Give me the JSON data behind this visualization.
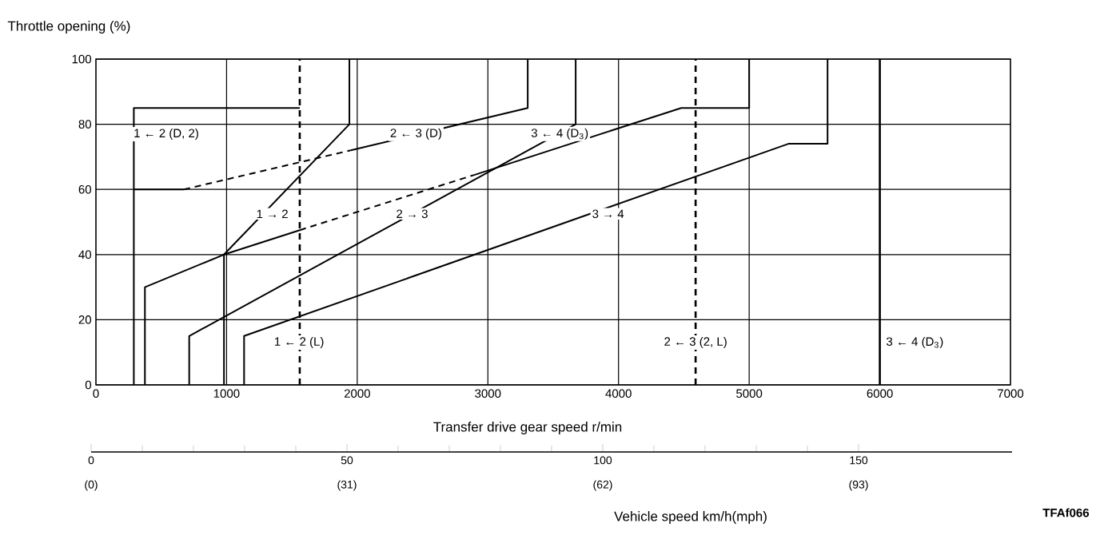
{
  "chart_data": {
    "type": "line",
    "ylabel": "Throttle opening (%)",
    "xlabel": "Transfer drive gear speed r/min",
    "x2label": "Vehicle speed km/h(mph)",
    "xlim": [
      0,
      7000
    ],
    "xticks": [
      0,
      1000,
      2000,
      3000,
      4000,
      5000,
      6000,
      7000
    ],
    "ylim": [
      0,
      100
    ],
    "yticks": [
      0,
      20,
      40,
      60,
      80,
      100
    ],
    "x2lim": [
      0,
      180
    ],
    "x2ticks": [
      0,
      50,
      100,
      150
    ],
    "grid": true,
    "series": [
      {
        "color": "#000000",
        "line_style": "solid",
        "x": [
          290,
          290,
          1560
        ],
        "values": [
          0,
          85,
          85
        ]
      },
      {
        "color": "#000000",
        "line_style": "solid",
        "x": [
          290,
          673
        ],
        "values": [
          60,
          60
        ]
      },
      {
        "color": "#000000",
        "line_style": "dashed",
        "x": [
          673,
          1950
        ],
        "values": [
          60,
          72
        ]
      },
      {
        "color": "#000000",
        "line_style": "solid",
        "x": [
          1950,
          3305,
          3305
        ],
        "values": [
          72,
          85,
          100
        ]
      },
      {
        "color": "#000000",
        "line_style": "solid",
        "x": [
          375,
          375,
          980,
          1940,
          1940
        ],
        "values": [
          0,
          30,
          40,
          80,
          100
        ]
      },
      {
        "color": "#000000",
        "line_style": "solid",
        "x": [
          714,
          714,
          3672,
          3672
        ],
        "values": [
          0,
          15,
          80,
          100
        ]
      },
      {
        "color": "#000000",
        "line_style": "solid",
        "x": [
          980,
          980,
          1560
        ],
        "values": [
          0,
          40,
          47.5
        ]
      },
      {
        "color": "#000000",
        "line_style": "dashed",
        "x": [
          1560,
          2900
        ],
        "values": [
          47.5,
          64.5
        ]
      },
      {
        "color": "#000000",
        "line_style": "solid",
        "x": [
          2900,
          4480,
          5000,
          5000
        ],
        "values": [
          64.5,
          85,
          85,
          100
        ]
      },
      {
        "color": "#000000",
        "line_style": "solid",
        "x": [
          1134,
          1134,
          5300,
          5600,
          5600
        ],
        "values": [
          0,
          15,
          74,
          74,
          100
        ]
      }
    ],
    "ref_lines": [
      {
        "axis": "x",
        "value": 1560,
        "line_style": "dashed",
        "color": "#000000"
      },
      {
        "axis": "x",
        "value": 4590,
        "line_style": "dashed",
        "color": "#000000"
      },
      {
        "axis": "x",
        "value": 6000,
        "line_style": "solid",
        "color": "#000000"
      }
    ],
    "annotations": [
      "1 ← 2 (D, 2)",
      {
        "text": "2 ← 3 (D)",
        "x": 2450,
        "y": 77
      },
      {
        "text": "3 ← 4 (D$_{3}$)",
        "x": 3550,
        "y": 77
      },
      {
        "text": "1 → 2",
        "x": 1350,
        "y": 52.5
      },
      {
        "text": "2 → 3",
        "x": 2420,
        "y": 52.5
      },
      {
        "text": "3 → 4",
        "x": 3920,
        "y": 52.5
      },
      {
        "text": "1 ← 2 (L)",
        "x": 1555,
        "y": 13
      },
      {
        "text": "2 ← 3 (2, L)",
        "x": 4590,
        "y": 13
      },
      "3 ← 4 (D$_{3}$)",
      "TFAf066",
      "(0)",
      "(31)",
      "(62)",
      "(93)"
    ]
  }
}
